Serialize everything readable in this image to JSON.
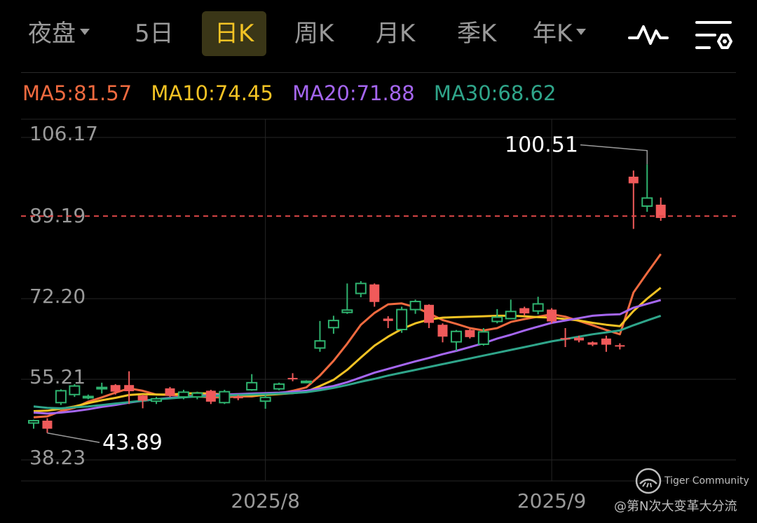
{
  "tabs": [
    {
      "label": "夜盘",
      "has_caret": true
    },
    {
      "label": "5日"
    },
    {
      "label": "日K",
      "active": true
    },
    {
      "label": "周K"
    },
    {
      "label": "月K"
    },
    {
      "label": "季K"
    },
    {
      "label": "年K",
      "has_caret": true
    }
  ],
  "toolbar": {
    "indicator_icon": "line-chart-icon",
    "settings_icon": "settings-list-icon"
  },
  "ma": {
    "ma5": {
      "label": "MA5:81.57",
      "color": "#f06a3f"
    },
    "ma10": {
      "label": "MA10:74.45",
      "color": "#f3c324"
    },
    "ma20": {
      "label": "MA20:71.88",
      "color": "#a566f0"
    },
    "ma30": {
      "label": "MA30:68.62",
      "color": "#2fa58a"
    }
  },
  "chart_data": {
    "type": "candlestick",
    "y_ticks": [
      "106.17",
      "89.19",
      "72.20",
      "55.21",
      "38.23"
    ],
    "ylim": [
      38.23,
      106.17
    ],
    "x_ticks": [
      "2025/8",
      "2025/9"
    ],
    "current_price": 89.6,
    "annotations": {
      "high": "100.51",
      "low": "43.89"
    },
    "up_color": "#2fb36f",
    "down_color": "#f05a5a",
    "candles": [
      [
        46.0,
        46.5,
        44.8,
        46.7
      ],
      [
        46.5,
        44.8,
        43.9,
        47.0
      ],
      [
        50.3,
        52.8,
        49.8,
        53.1
      ],
      [
        52.0,
        53.8,
        51.5,
        54.2
      ],
      [
        51.5,
        51.6,
        51.0,
        52.0
      ],
      [
        53.3,
        53.5,
        52.2,
        54.5
      ],
      [
        54.0,
        52.6,
        52.0,
        54.2
      ],
      [
        54.0,
        52.7,
        50.0,
        56.9
      ],
      [
        51.8,
        50.7,
        49.1,
        52.0
      ],
      [
        50.6,
        51.1,
        50.0,
        51.5
      ],
      [
        53.3,
        51.8,
        51.5,
        53.6
      ],
      [
        51.5,
        52.5,
        51.0,
        53.0
      ],
      [
        51.5,
        52.3,
        51.0,
        52.6
      ],
      [
        52.8,
        50.5,
        50.0,
        53.0
      ],
      [
        50.3,
        52.6,
        50.0,
        53.0
      ],
      [
        51.5,
        51.3,
        50.8,
        51.9
      ],
      [
        53.0,
        54.5,
        52.8,
        56.3
      ],
      [
        50.6,
        51.4,
        49.0,
        52.0
      ],
      [
        53.2,
        54.2,
        52.9,
        54.5
      ],
      [
        55.5,
        55.3,
        54.8,
        56.5
      ],
      [
        54.7,
        54.8,
        54.5,
        55.0
      ],
      [
        61.8,
        63.3,
        61.0,
        67.5
      ],
      [
        66.1,
        67.6,
        64.8,
        68.6
      ],
      [
        69.3,
        69.8,
        69.0,
        75.4
      ],
      [
        73.3,
        75.4,
        72.5,
        75.9
      ],
      [
        75.2,
        71.5,
        70.5,
        75.4
      ],
      [
        68.0,
        67.5,
        66.0,
        68.5
      ],
      [
        65.7,
        69.9,
        65.0,
        70.5
      ],
      [
        69.9,
        71.6,
        69.0,
        72.0
      ],
      [
        70.9,
        67.1,
        66.0,
        71.0
      ],
      [
        66.7,
        64.2,
        63.0,
        67.0
      ],
      [
        63.1,
        65.3,
        61.2,
        65.6
      ],
      [
        65.6,
        64.1,
        63.8,
        65.8
      ],
      [
        62.6,
        65.2,
        62.3,
        66.0
      ],
      [
        67.4,
        68.3,
        67.0,
        70.0
      ],
      [
        68.0,
        69.5,
        68.0,
        72.0
      ],
      [
        70.2,
        69.1,
        68.6,
        70.5
      ],
      [
        69.6,
        71.1,
        68.9,
        72.6
      ],
      [
        69.9,
        67.4,
        67.0,
        70.2
      ],
      [
        63.9,
        63.6,
        62.0,
        66.0
      ],
      [
        64.0,
        63.4,
        63.0,
        64.4
      ],
      [
        63.0,
        62.5,
        62.2,
        63.2
      ],
      [
        63.8,
        62.5,
        61.0,
        64.4
      ],
      [
        62.4,
        62.1,
        61.5,
        62.8
      ],
      [
        97.9,
        96.5,
        86.9,
        99.2
      ],
      [
        91.7,
        93.4,
        90.5,
        100.5
      ],
      [
        92.0,
        89.2,
        88.6,
        93.5
      ]
    ],
    "series": [
      {
        "name": "MA5",
        "color": "#f06a3f",
        "values": [
          47.2,
          47.4,
          48.5,
          49.2,
          50.5,
          51.4,
          52.4,
          53.3,
          52.8,
          52.0,
          51.9,
          51.8,
          51.6,
          51.4,
          51.4,
          51.6,
          51.6,
          52.0,
          52.2,
          52.8,
          53.5,
          56.0,
          59.1,
          62.7,
          66.7,
          69.2,
          71.0,
          71.2,
          70.4,
          69.1,
          67.7,
          66.9,
          66.0,
          65.5,
          66.0,
          67.3,
          67.9,
          68.4,
          68.9,
          68.4,
          67.5,
          66.6,
          65.6,
          64.7,
          73.5,
          77.6,
          81.6
        ]
      },
      {
        "name": "MA10",
        "color": "#f3c324",
        "values": [
          48.5,
          48.6,
          49.0,
          49.5,
          50.2,
          50.8,
          51.3,
          51.9,
          52.1,
          52.0,
          52.0,
          52.2,
          52.3,
          52.2,
          52.0,
          51.9,
          51.8,
          51.9,
          52.1,
          52.3,
          52.6,
          53.8,
          55.1,
          57.2,
          59.8,
          62.3,
          64.2,
          65.8,
          67.0,
          67.8,
          68.2,
          68.3,
          68.4,
          68.5,
          68.6,
          68.6,
          68.5,
          68.3,
          68.2,
          67.9,
          67.6,
          67.1,
          66.7,
          66.4,
          69.6,
          72.2,
          74.5
        ]
      },
      {
        "name": "MA20",
        "color": "#a566f0",
        "values": [
          48.2,
          48.0,
          48.2,
          48.5,
          48.9,
          49.4,
          49.8,
          50.3,
          50.7,
          51.0,
          51.3,
          51.5,
          51.7,
          51.9,
          52.0,
          52.1,
          52.2,
          52.3,
          52.4,
          52.6,
          52.8,
          53.3,
          53.8,
          54.6,
          55.6,
          56.6,
          57.4,
          58.2,
          59.0,
          59.7,
          60.5,
          61.2,
          62.0,
          62.8,
          63.8,
          64.6,
          65.5,
          66.3,
          67.1,
          67.6,
          68.1,
          68.6,
          68.8,
          68.9,
          70.3,
          71.1,
          71.9
        ]
      },
      {
        "name": "MA30",
        "color": "#2fa58a",
        "values": [
          49.5,
          49.2,
          49.1,
          49.3,
          49.5,
          49.8,
          50.1,
          50.4,
          50.7,
          51.0,
          51.2,
          51.4,
          51.6,
          51.7,
          51.8,
          51.9,
          52.0,
          52.1,
          52.2,
          52.3,
          52.5,
          52.9,
          53.4,
          54.0,
          54.7,
          55.3,
          56.0,
          56.6,
          57.2,
          57.8,
          58.4,
          59.0,
          59.6,
          60.2,
          60.8,
          61.4,
          62.0,
          62.6,
          63.2,
          63.7,
          64.2,
          64.7,
          65.1,
          65.5,
          66.6,
          67.6,
          68.6
        ]
      }
    ]
  },
  "watermark": {
    "brand": "Tiger Community",
    "author": "@第N次大变革大分流"
  }
}
